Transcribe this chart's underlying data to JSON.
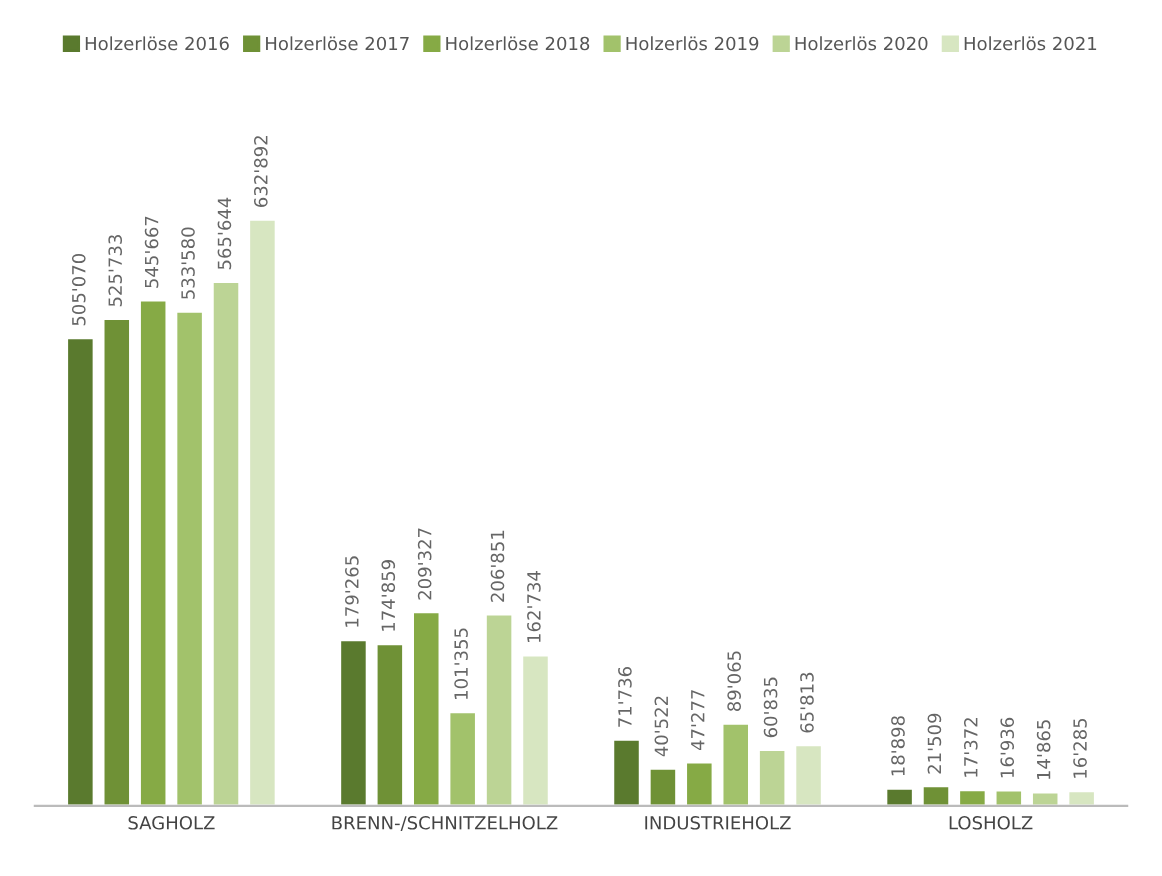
{
  "chart_data": {
    "type": "bar",
    "categories": [
      "SAGHOLZ",
      "BRENN-/SCHNITZELHOLZ",
      "INDUSTRIEHOLZ",
      "LOSHOLZ"
    ],
    "legend": "top",
    "grid": false,
    "series": [
      {
        "name": "Holzerlöse 2016",
        "color": "#5a7a2e",
        "values": [
          505070,
          179265,
          71736,
          18898
        ],
        "value_labels": [
          "505'070",
          "179'265",
          "71'736",
          "18'898"
        ]
      },
      {
        "name": "Holzerlöse 2017",
        "color": "#6f9136",
        "values": [
          525733,
          174859,
          40522,
          21509
        ],
        "value_labels": [
          "525'733",
          "174'859",
          "40'522",
          "21'509"
        ]
      },
      {
        "name": "Holzerlöse 2018",
        "color": "#86aa45",
        "values": [
          545667,
          209327,
          47277,
          17372
        ],
        "value_labels": [
          "545'667",
          "209'327",
          "47'277",
          "17'372"
        ]
      },
      {
        "name": "Holzerlös 2019",
        "color": "#a2c26b",
        "values": [
          533580,
          101355,
          89065,
          16936
        ],
        "value_labels": [
          "533'580",
          "101'355",
          "89'065",
          "16'936"
        ]
      },
      {
        "name": "Holzerlös 2020",
        "color": "#bcd495",
        "values": [
          565644,
          206851,
          60835,
          14865
        ],
        "value_labels": [
          "565'644",
          "206'851",
          "60'835",
          "14'865"
        ]
      },
      {
        "name": "Holzerlös 2021",
        "color": "#d7e6c1",
        "values": [
          632892,
          162734,
          65813,
          16285
        ],
        "value_labels": [
          "632'892",
          "162'734",
          "65'813",
          "16'285"
        ]
      }
    ]
  }
}
